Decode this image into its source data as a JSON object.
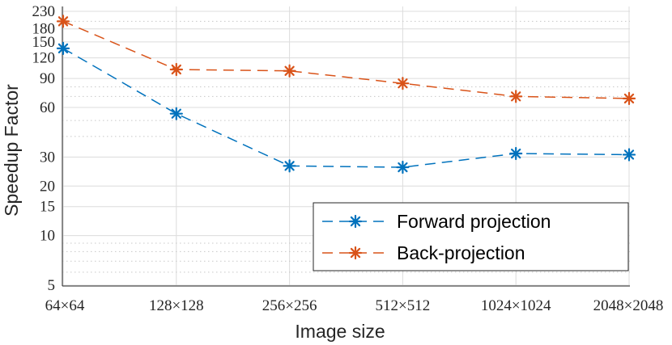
{
  "chart_data": {
    "type": "line",
    "xlabel": "Image size",
    "ylabel": "Speedup Factor",
    "categories": [
      "64×64",
      "128×128",
      "256×256",
      "512×512",
      "1024×1024",
      "2048×2048"
    ],
    "yscale": "log",
    "ylim": [
      5,
      230
    ],
    "yticks": [
      5,
      10,
      15,
      20,
      30,
      60,
      90,
      120,
      150,
      180,
      230
    ],
    "grid": "on",
    "legend_position": "bottom-right",
    "series": [
      {
        "name": "Forward projection",
        "color": "#0072bd",
        "marker": "asterisk",
        "line_style": "dashed",
        "values": [
          137,
          55,
          26.5,
          26,
          31.5,
          31
        ]
      },
      {
        "name": "Back-projection",
        "color": "#d95319",
        "marker": "asterisk",
        "line_style": "dashed",
        "values": [
          200,
          102,
          100,
          84,
          70,
          68
        ]
      }
    ]
  }
}
